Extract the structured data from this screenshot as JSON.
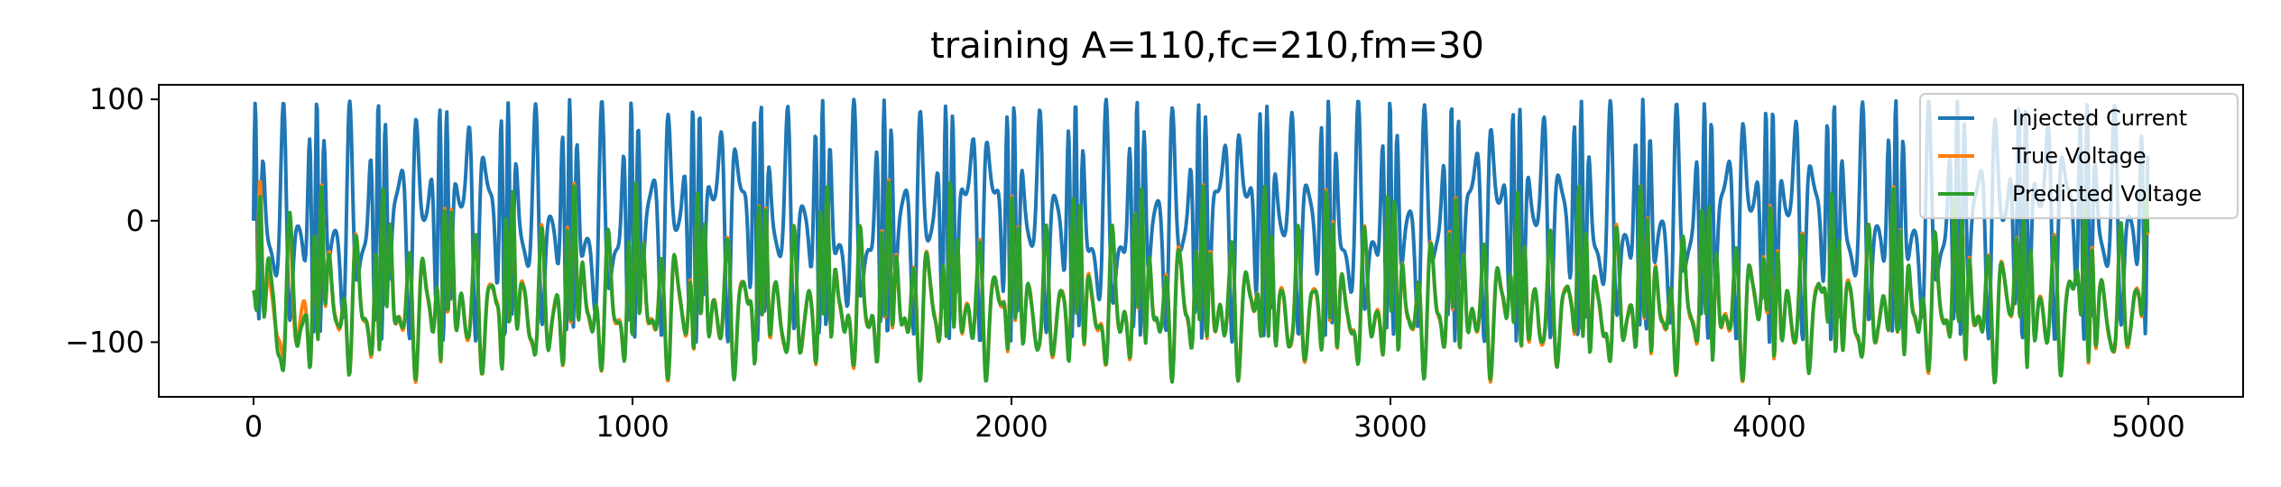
{
  "chart_data": {
    "type": "line",
    "title": "training A=110,fc=210,fm=30",
    "xlabel": "",
    "ylabel": "",
    "xlim": [
      -250,
      5250
    ],
    "ylim": [
      -145,
      112
    ],
    "x_ticks": [
      0,
      1000,
      2000,
      3000,
      4000,
      5000
    ],
    "x_tick_labels": [
      "0",
      "1000",
      "2000",
      "3000",
      "4000",
      "5000"
    ],
    "y_ticks": [
      100,
      0,
      -100
    ],
    "y_tick_labels": [
      "100",
      "0",
      "−100"
    ],
    "grid": false,
    "legend_position": "top-right",
    "n_points": 5000,
    "amplitude": 110,
    "fc": 210,
    "fm": 30,
    "series": [
      {
        "name": "Injected Current",
        "color": "#1f77b4"
      },
      {
        "name": "True Voltage",
        "color": "#ff7f0e"
      },
      {
        "name": "Predicted Voltage",
        "color": "#2ca02c"
      }
    ]
  }
}
